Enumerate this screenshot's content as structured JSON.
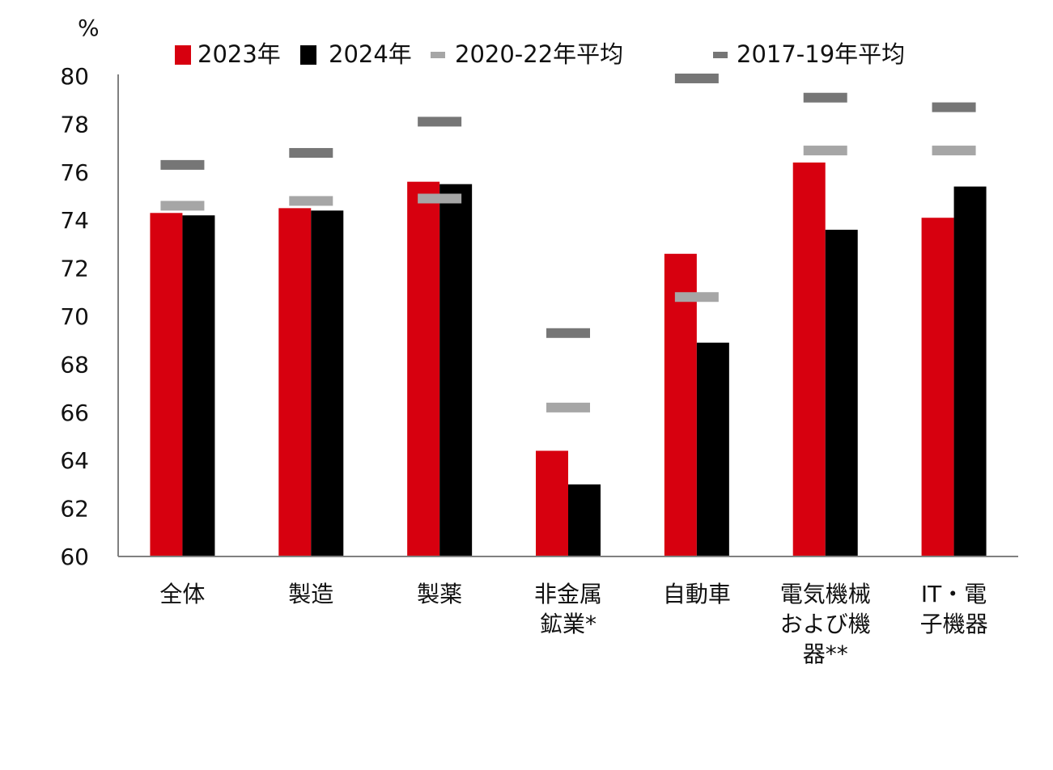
{
  "chart_data": {
    "type": "bar",
    "unit": "%",
    "categories": [
      [
        "全体"
      ],
      [
        "製造"
      ],
      [
        "製薬"
      ],
      [
        "非金属",
        "鉱業*"
      ],
      [
        "自動車"
      ],
      [
        "電気機械",
        "および機",
        "器**"
      ],
      [
        "IT・電",
        "子機器"
      ]
    ],
    "series": [
      {
        "name": "2023年",
        "kind": "bar",
        "color": "#d7000f",
        "values": [
          74.3,
          74.5,
          75.6,
          64.4,
          72.6,
          76.4,
          74.1
        ]
      },
      {
        "name": "2024年",
        "kind": "bar",
        "color": "#000000",
        "values": [
          74.2,
          74.4,
          75.5,
          63.0,
          68.9,
          73.6,
          75.4
        ]
      },
      {
        "name": "2020-22年平均",
        "kind": "marker",
        "color": "#a6a6a6",
        "values": [
          74.6,
          74.8,
          74.9,
          66.2,
          70.8,
          76.9,
          76.9
        ]
      },
      {
        "name": "2017-19年平均",
        "kind": "marker",
        "color": "#767676",
        "values": [
          76.3,
          76.8,
          78.1,
          69.3,
          79.9,
          79.1,
          78.7
        ]
      }
    ],
    "ylim": [
      60,
      80
    ],
    "yticks": [
      60,
      62,
      64,
      66,
      68,
      70,
      72,
      74,
      76,
      78,
      80
    ],
    "grid": false,
    "legend_position": "top"
  }
}
